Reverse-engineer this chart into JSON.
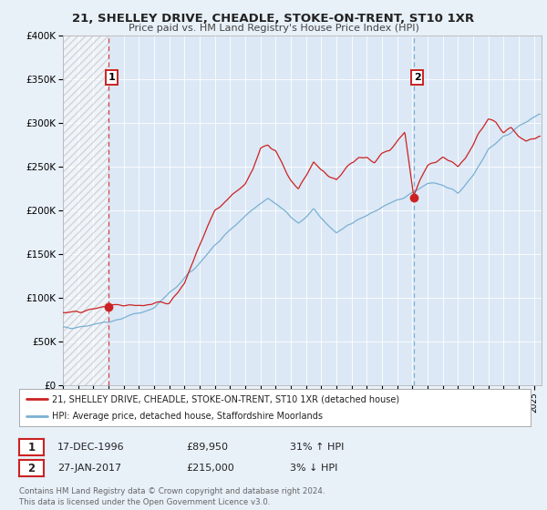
{
  "title": "21, SHELLEY DRIVE, CHEADLE, STOKE-ON-TRENT, ST10 1XR",
  "subtitle": "Price paid vs. HM Land Registry's House Price Index (HPI)",
  "x_start": 1994.0,
  "x_end": 2025.5,
  "y_min": 0,
  "y_max": 400000,
  "y_ticks": [
    0,
    50000,
    100000,
    150000,
    200000,
    250000,
    300000,
    350000,
    400000
  ],
  "y_tick_labels": [
    "£0",
    "£50K",
    "£100K",
    "£150K",
    "£200K",
    "£250K",
    "£300K",
    "£350K",
    "£400K"
  ],
  "x_ticks": [
    1994,
    1995,
    1996,
    1997,
    1998,
    1999,
    2000,
    2001,
    2002,
    2003,
    2004,
    2005,
    2006,
    2007,
    2008,
    2009,
    2010,
    2011,
    2012,
    2013,
    2014,
    2015,
    2016,
    2017,
    2018,
    2019,
    2020,
    2021,
    2022,
    2023,
    2024,
    2025
  ],
  "bg_color": "#e8f0f8",
  "plot_bg_color": "#dce8f5",
  "hatched_region_end": 1996.97,
  "marker1_x": 1996.97,
  "marker1_y": 89950,
  "marker1_label": "1",
  "marker2_x": 2017.08,
  "marker2_y": 215000,
  "marker2_label": "2",
  "red_line_color": "#cc2222",
  "blue_line_color": "#7ab0d4",
  "marker_color": "#cc2222",
  "vline1_color": "#cc4444",
  "vline2_color": "#7ab0d4",
  "legend_line1": "21, SHELLEY DRIVE, CHEADLE, STOKE-ON-TRENT, ST10 1XR (detached house)",
  "legend_line2": "HPI: Average price, detached house, Staffordshire Moorlands",
  "table_row1": [
    "1",
    "17-DEC-1996",
    "£89,950",
    "31% ↑ HPI"
  ],
  "table_row2": [
    "2",
    "27-JAN-2017",
    "£215,000",
    "3% ↓ HPI"
  ],
  "footer": "Contains HM Land Registry data © Crown copyright and database right 2024.\nThis data is licensed under the Open Government Licence v3.0."
}
